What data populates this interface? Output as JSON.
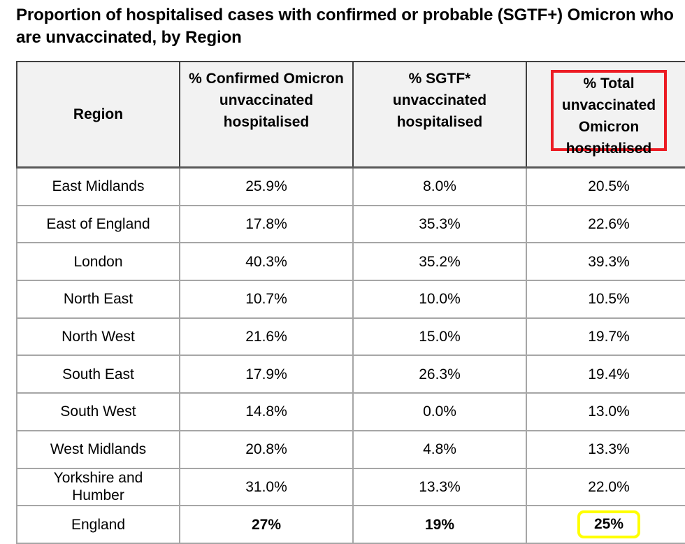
{
  "title": "Proportion of hospitalised cases with confirmed or probable (SGTF+) Omicron who are unvaccinated, by Region",
  "table": {
    "headers": [
      "Region",
      "% Confirmed Omicron unvaccinated hospitalised",
      "% SGTF* unvaccinated hospitalised",
      "% Total unvaccinated Omicron hospitalised"
    ],
    "rows": [
      {
        "region": "East Midlands",
        "confirmed": "25.9%",
        "sgtf": "8.0%",
        "total": "20.5%"
      },
      {
        "region": "East of England",
        "confirmed": "17.8%",
        "sgtf": "35.3%",
        "total": "22.6%"
      },
      {
        "region": "London",
        "confirmed": "40.3%",
        "sgtf": "35.2%",
        "total": "39.3%"
      },
      {
        "region": "North East",
        "confirmed": "10.7%",
        "sgtf": "10.0%",
        "total": "10.5%"
      },
      {
        "region": "North West",
        "confirmed": "21.6%",
        "sgtf": "15.0%",
        "total": "19.7%"
      },
      {
        "region": "South East",
        "confirmed": "17.9%",
        "sgtf": "26.3%",
        "total": "19.4%"
      },
      {
        "region": "South West",
        "confirmed": "14.8%",
        "sgtf": "0.0%",
        "total": "13.0%"
      },
      {
        "region": "West Midlands",
        "confirmed": "20.8%",
        "sgtf": "4.8%",
        "total": "13.3%"
      },
      {
        "region": "Yorkshire and Humber",
        "confirmed": "31.0%",
        "sgtf": "13.3%",
        "total": "22.0%"
      }
    ],
    "total_row": {
      "region": "England",
      "confirmed": "27%",
      "sgtf": "19%",
      "total": "25%"
    }
  },
  "highlights": {
    "header_box_color": "#ec1c24",
    "total_box_color": "#ffff00"
  }
}
